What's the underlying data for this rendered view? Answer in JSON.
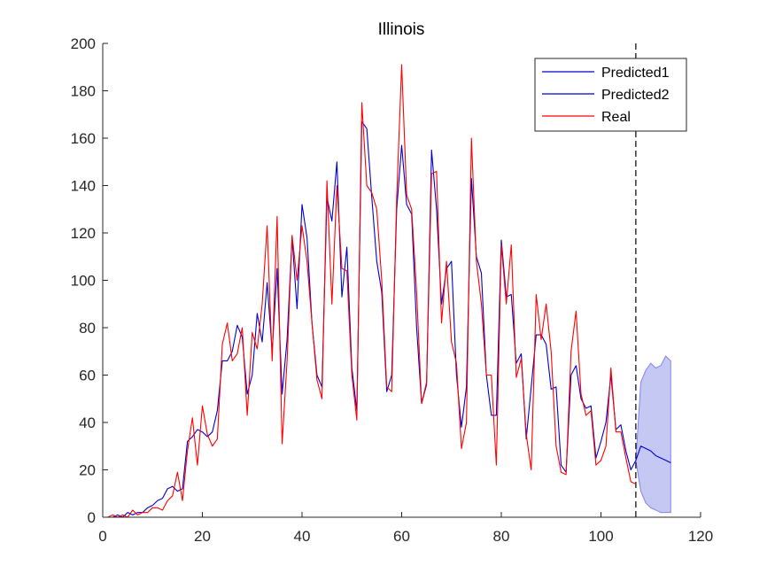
{
  "chart_data": {
    "type": "line",
    "title": "Illinois",
    "xlabel": "",
    "ylabel": "",
    "xlim": [
      0,
      120
    ],
    "ylim": [
      0,
      200
    ],
    "xticks": [
      0,
      20,
      40,
      60,
      80,
      100,
      120
    ],
    "yticks": [
      0,
      20,
      40,
      60,
      80,
      100,
      120,
      140,
      160,
      180,
      200
    ],
    "xtick_labels": [
      "0",
      "20",
      "40",
      "60",
      "80",
      "100",
      "120"
    ],
    "ytick_labels": [
      "0",
      "20",
      "40",
      "60",
      "80",
      "100",
      "120",
      "140",
      "160",
      "180",
      "200"
    ],
    "grid": false,
    "legend_position": "top-right",
    "vertical_marker_x": 107,
    "colors": {
      "predicted": "#0000cc",
      "real": "#ff0000",
      "band_fill": "#c6c8f4",
      "band_edge": "#7f84f0",
      "marker": "#000000"
    },
    "series": [
      {
        "name": "Predicted1",
        "color": "#0000cc",
        "x": [
          1,
          2,
          3,
          4,
          5,
          6,
          7,
          8,
          9,
          10,
          11,
          12,
          13,
          14,
          15,
          16,
          17,
          18,
          19,
          20,
          21,
          22,
          23,
          24,
          25,
          26,
          27,
          28,
          29,
          30,
          31,
          32,
          33,
          34,
          35,
          36,
          37,
          38,
          39,
          40,
          41,
          42,
          43,
          44,
          45,
          46,
          47,
          48,
          49,
          50,
          51,
          52,
          53,
          54,
          55,
          56,
          57,
          58,
          59,
          60,
          61,
          62,
          63,
          64,
          65,
          66,
          67,
          68,
          69,
          70,
          71,
          72,
          73,
          74,
          75,
          76,
          77,
          78,
          79,
          80,
          81,
          82,
          83,
          84,
          85,
          86,
          87,
          88,
          89,
          90,
          91,
          92,
          93,
          94,
          95,
          96,
          97,
          98,
          99,
          100,
          101,
          102,
          103,
          104,
          105,
          106,
          107
        ],
        "y": [
          0,
          0,
          1,
          0,
          2,
          1,
          2,
          2,
          4,
          5,
          7,
          8,
          12,
          13,
          11,
          12,
          32,
          34,
          37,
          36,
          34,
          36,
          45,
          66,
          66,
          70,
          81,
          76,
          52,
          60,
          86,
          74,
          99,
          70,
          105,
          52,
          75,
          118,
          88,
          132,
          118,
          82,
          60,
          55,
          135,
          125,
          150,
          93,
          114,
          63,
          45,
          167,
          164,
          135,
          108,
          95,
          53,
          60,
          130,
          157,
          132,
          128,
          80,
          48,
          56,
          155,
          130,
          90,
          105,
          108,
          60,
          38,
          55,
          143,
          110,
          103,
          60,
          43,
          43,
          117,
          93,
          94,
          65,
          69,
          33,
          55,
          77,
          77,
          73,
          54,
          55,
          22,
          19,
          60,
          64,
          50,
          46,
          47,
          25,
          32,
          40,
          60,
          37,
          39,
          28,
          20,
          24
        ]
      },
      {
        "name": "Predicted2",
        "color": "#0000cc",
        "x": [
          107,
          108,
          109,
          110,
          111,
          112,
          113,
          114
        ],
        "y": [
          24,
          30,
          29,
          28,
          26,
          25,
          24,
          23
        ]
      },
      {
        "name": "Real",
        "color": "#ff0000",
        "x": [
          1,
          2,
          3,
          4,
          5,
          6,
          7,
          8,
          9,
          10,
          11,
          12,
          13,
          14,
          15,
          16,
          17,
          18,
          19,
          20,
          21,
          22,
          23,
          24,
          25,
          26,
          27,
          28,
          29,
          30,
          31,
          32,
          33,
          34,
          35,
          36,
          37,
          38,
          39,
          40,
          41,
          42,
          43,
          44,
          45,
          46,
          47,
          48,
          49,
          50,
          51,
          52,
          53,
          54,
          55,
          56,
          57,
          58,
          59,
          60,
          61,
          62,
          63,
          64,
          65,
          66,
          67,
          68,
          69,
          70,
          71,
          72,
          73,
          74,
          75,
          76,
          77,
          78,
          79,
          80,
          81,
          82,
          83,
          84,
          85,
          86,
          87,
          88,
          89,
          90,
          91,
          92,
          93,
          94,
          95,
          96,
          97,
          98,
          99,
          100,
          101,
          102,
          103,
          104,
          105,
          106,
          107
        ],
        "y": [
          0,
          1,
          0,
          1,
          0,
          3,
          1,
          2,
          2,
          4,
          4,
          3,
          7,
          9,
          19,
          7,
          28,
          42,
          22,
          47,
          35,
          30,
          33,
          73,
          82,
          66,
          69,
          80,
          43,
          78,
          71,
          90,
          123,
          66,
          127,
          31,
          66,
          119,
          100,
          123,
          108,
          82,
          58,
          50,
          142,
          90,
          140,
          105,
          104,
          60,
          41,
          175,
          140,
          137,
          130,
          100,
          55,
          53,
          135,
          191,
          136,
          130,
          95,
          48,
          57,
          145,
          146,
          82,
          108,
          74,
          65,
          29,
          40,
          160,
          108,
          90,
          60,
          60,
          22,
          115,
          90,
          115,
          59,
          67,
          35,
          20,
          94,
          75,
          90,
          70,
          30,
          19,
          18,
          70,
          87,
          52,
          43,
          45,
          22,
          24,
          30,
          63,
          36,
          36,
          25,
          15,
          14
        ]
      }
    ],
    "band": {
      "x": [
        107,
        108,
        109,
        110,
        111,
        112,
        113,
        114
      ],
      "upper": [
        24,
        57,
        62,
        65,
        63,
        64,
        68,
        66
      ],
      "lower": [
        24,
        11,
        6,
        4,
        3,
        2,
        2,
        2
      ]
    }
  }
}
